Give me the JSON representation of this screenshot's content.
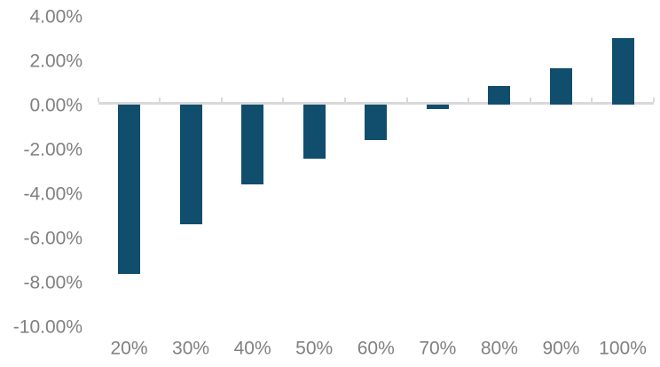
{
  "chart_data": {
    "type": "bar",
    "title": "",
    "xlabel": "",
    "ylabel": "",
    "categories": [
      "20%",
      "30%",
      "40%",
      "50%",
      "60%",
      "70%",
      "80%",
      "90%",
      "100%"
    ],
    "values": [
      -7.65,
      -5.4,
      -3.6,
      -2.45,
      -1.6,
      -0.2,
      0.85,
      1.65,
      3.0
    ],
    "series_name": "",
    "ylim": [
      -10,
      4
    ],
    "y_ticks": [
      {
        "value": 4,
        "label": "4.00%"
      },
      {
        "value": 2,
        "label": "2.00%"
      },
      {
        "value": 0,
        "label": "0.00%"
      },
      {
        "value": -2,
        "label": "-2.00%"
      },
      {
        "value": -4,
        "label": "-4.00%"
      },
      {
        "value": -6,
        "label": "-6.00%"
      },
      {
        "value": -8,
        "label": "-8.00%"
      },
      {
        "value": -10,
        "label": "-10.00%"
      }
    ],
    "grid": false,
    "legend": null,
    "colors": {
      "bar": "#114e6e",
      "axis_line": "#d9d9d9",
      "tick_mark": "#d9d9d9",
      "label_text": "#808080",
      "background": "#ffffff"
    }
  }
}
